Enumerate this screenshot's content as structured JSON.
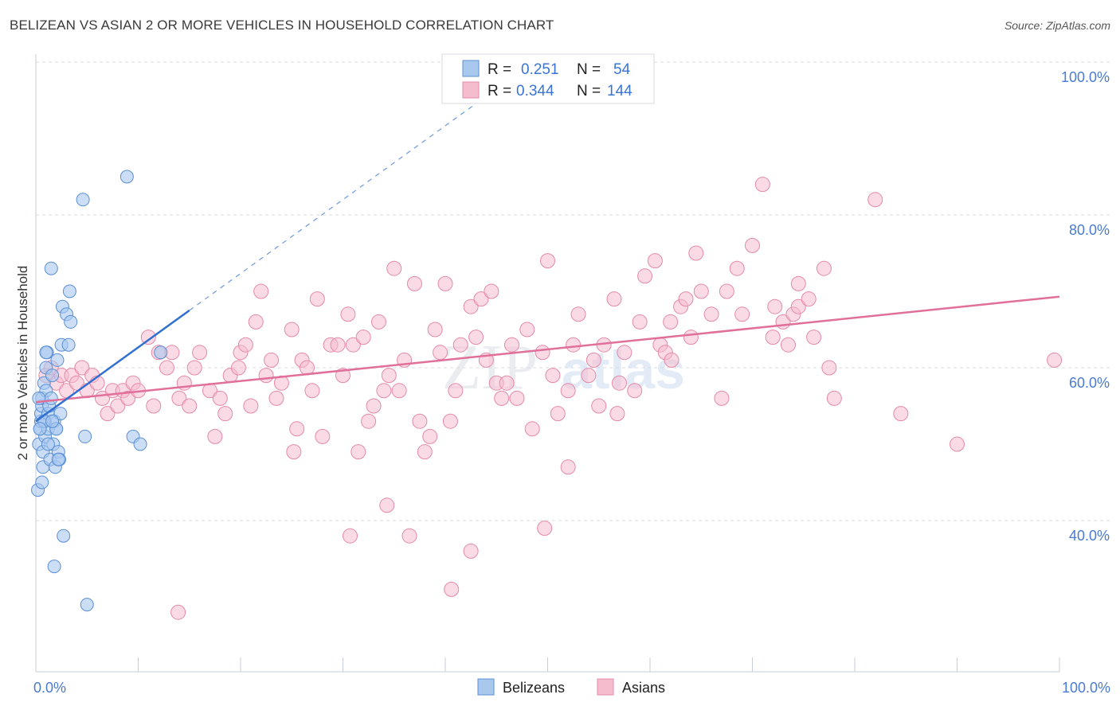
{
  "title": "BELIZEAN VS ASIAN 2 OR MORE VEHICLES IN HOUSEHOLD CORRELATION CHART",
  "source": "Source: ZipAtlas.com",
  "watermark": {
    "zip": "ZIP",
    "atlas": "atlas"
  },
  "colors": {
    "blue_fill": "#a9c8ee",
    "blue_stroke": "#5b8fd6",
    "blue_line": "#2f6fd0",
    "pink_fill": "#f5bccd",
    "pink_stroke": "#e58aa8",
    "pink_line": "#e0709a",
    "grid": "#d8dde6",
    "axis_label": "#4a7bd0"
  },
  "legend": {
    "rows": [
      {
        "r_label": "R =",
        "r_value": "0.251",
        "n_label": "N =",
        "n_value": "54"
      },
      {
        "r_label": "R =",
        "r_value": "0.344",
        "n_label": "N =",
        "n_value": "144"
      }
    ]
  },
  "bottom_legend": {
    "belizeans": "Belizeans",
    "asians": "Asians"
  },
  "chart_data": {
    "type": "scatter",
    "title": "BELIZEAN VS ASIAN 2 OR MORE VEHICLES IN HOUSEHOLD CORRELATION CHART",
    "xlabel": "",
    "ylabel": "2 or more Vehicles in Household",
    "xlim": [
      0,
      100
    ],
    "ylim": [
      20,
      103
    ],
    "x_tick_labels": [
      "0.0%",
      "100.0%"
    ],
    "y_ticks": [
      40,
      60,
      80,
      100
    ],
    "y_tick_labels": [
      "40.0%",
      "60.0%",
      "80.0%",
      "100.0%"
    ],
    "series": [
      {
        "name": "Belizeans",
        "r": 0.251,
        "n": 54,
        "trend": {
          "x0": 0,
          "y0": 53.0,
          "x1": 15,
          "y1": 67.5,
          "dash_to_x": 47
        },
        "points": [
          [
            0.2,
            44
          ],
          [
            0.3,
            50
          ],
          [
            0.4,
            52
          ],
          [
            0.5,
            53
          ],
          [
            0.5,
            54
          ],
          [
            0.6,
            55
          ],
          [
            0.6,
            56
          ],
          [
            0.7,
            47
          ],
          [
            0.7,
            49
          ],
          [
            0.8,
            58
          ],
          [
            0.9,
            51
          ],
          [
            0.9,
            53
          ],
          [
            1.0,
            57
          ],
          [
            1.0,
            60
          ],
          [
            1.1,
            62
          ],
          [
            1.2,
            54
          ],
          [
            1.2,
            52
          ],
          [
            1.3,
            55
          ],
          [
            1.4,
            48
          ],
          [
            1.5,
            56
          ],
          [
            1.6,
            59
          ],
          [
            1.7,
            50
          ],
          [
            1.8,
            53
          ],
          [
            1.9,
            47
          ],
          [
            2.0,
            52
          ],
          [
            2.1,
            61
          ],
          [
            2.2,
            49
          ],
          [
            2.3,
            48
          ],
          [
            2.4,
            54
          ],
          [
            2.5,
            63
          ],
          [
            2.6,
            68
          ],
          [
            0.3,
            56
          ],
          [
            0.6,
            45
          ],
          [
            1.0,
            62
          ],
          [
            1.5,
            73
          ],
          [
            0.8,
            53
          ],
          [
            1.2,
            50
          ],
          [
            1.8,
            34
          ],
          [
            2.0,
            52
          ],
          [
            2.2,
            48
          ],
          [
            3.0,
            67
          ],
          [
            3.2,
            63
          ],
          [
            3.3,
            70
          ],
          [
            3.4,
            66
          ],
          [
            2.7,
            38
          ],
          [
            4.6,
            82
          ],
          [
            4.8,
            51
          ],
          [
            5.0,
            29
          ],
          [
            8.9,
            85
          ],
          [
            9.5,
            51
          ],
          [
            10.2,
            50
          ],
          [
            12.2,
            62
          ],
          [
            0.4,
            52
          ],
          [
            1.6,
            53
          ]
        ]
      },
      {
        "name": "Asians",
        "r": 0.344,
        "n": 144,
        "trend": {
          "x0": 0,
          "y0": 55.5,
          "x1": 100,
          "y1": 69.3
        },
        "points": [
          [
            1.0,
            59
          ],
          [
            1.5,
            60
          ],
          [
            2.0,
            58
          ],
          [
            2.5,
            59
          ],
          [
            3.0,
            57
          ],
          [
            3.5,
            59
          ],
          [
            4.0,
            58
          ],
          [
            4.5,
            60
          ],
          [
            5.0,
            57
          ],
          [
            5.5,
            59
          ],
          [
            6.0,
            58
          ],
          [
            6.5,
            56
          ],
          [
            7.0,
            54
          ],
          [
            7.5,
            57
          ],
          [
            8.0,
            55
          ],
          [
            8.5,
            57
          ],
          [
            9.0,
            56
          ],
          [
            9.5,
            58
          ],
          [
            10.0,
            57
          ],
          [
            11.0,
            64
          ],
          [
            11.5,
            55
          ],
          [
            12.0,
            62
          ],
          [
            12.8,
            60
          ],
          [
            13.3,
            62
          ],
          [
            14.0,
            56
          ],
          [
            14.5,
            58
          ],
          [
            15.0,
            55
          ],
          [
            15.5,
            60
          ],
          [
            16.0,
            62
          ],
          [
            17.0,
            57
          ],
          [
            17.5,
            51
          ],
          [
            18.0,
            56
          ],
          [
            18.5,
            54
          ],
          [
            19.0,
            59
          ],
          [
            19.8,
            60
          ],
          [
            20.0,
            62
          ],
          [
            20.5,
            63
          ],
          [
            21.0,
            55
          ],
          [
            21.5,
            66
          ],
          [
            22.0,
            70
          ],
          [
            22.5,
            59
          ],
          [
            23.0,
            61
          ],
          [
            23.5,
            56
          ],
          [
            24.0,
            58
          ],
          [
            25.0,
            65
          ],
          [
            25.5,
            52
          ],
          [
            26.0,
            61
          ],
          [
            26.5,
            60
          ],
          [
            27.0,
            57
          ],
          [
            27.5,
            69
          ],
          [
            28.0,
            51
          ],
          [
            28.8,
            63
          ],
          [
            29.5,
            63
          ],
          [
            30.0,
            59
          ],
          [
            30.5,
            67
          ],
          [
            31.0,
            63
          ],
          [
            31.5,
            49
          ],
          [
            32.0,
            64
          ],
          [
            32.5,
            53
          ],
          [
            33.0,
            55
          ],
          [
            33.5,
            66
          ],
          [
            34.0,
            57
          ],
          [
            34.5,
            59
          ],
          [
            35.0,
            73
          ],
          [
            35.5,
            57
          ],
          [
            36.0,
            61
          ],
          [
            37.0,
            71
          ],
          [
            37.5,
            53
          ],
          [
            38.0,
            49
          ],
          [
            38.5,
            51
          ],
          [
            39.0,
            65
          ],
          [
            39.5,
            62
          ],
          [
            40.0,
            71
          ],
          [
            40.5,
            53
          ],
          [
            41.0,
            57
          ],
          [
            41.5,
            63
          ],
          [
            42.5,
            68
          ],
          [
            43.0,
            64
          ],
          [
            43.5,
            69
          ],
          [
            44.0,
            61
          ],
          [
            44.5,
            70
          ],
          [
            45.0,
            58
          ],
          [
            45.5,
            56
          ],
          [
            46.0,
            58
          ],
          [
            46.5,
            63
          ],
          [
            47.0,
            56
          ],
          [
            48.0,
            65
          ],
          [
            48.5,
            52
          ],
          [
            49.5,
            62
          ],
          [
            50.0,
            74
          ],
          [
            50.5,
            59
          ],
          [
            51.0,
            54
          ],
          [
            52.0,
            57
          ],
          [
            52.5,
            63
          ],
          [
            53.0,
            67
          ],
          [
            54.0,
            59
          ],
          [
            54.5,
            61
          ],
          [
            55.0,
            55
          ],
          [
            55.5,
            63
          ],
          [
            56.5,
            69
          ],
          [
            57.0,
            58
          ],
          [
            57.5,
            62
          ],
          [
            58.5,
            57
          ],
          [
            59.0,
            66
          ],
          [
            59.5,
            72
          ],
          [
            60.5,
            74
          ],
          [
            61.0,
            63
          ],
          [
            61.5,
            62
          ],
          [
            62.0,
            66
          ],
          [
            63.0,
            68
          ],
          [
            63.5,
            69
          ],
          [
            64.0,
            64
          ],
          [
            64.5,
            75
          ],
          [
            65.0,
            70
          ],
          [
            66.0,
            67
          ],
          [
            67.0,
            56
          ],
          [
            67.5,
            70
          ],
          [
            68.5,
            73
          ],
          [
            69.0,
            67
          ],
          [
            70.0,
            76
          ],
          [
            71.0,
            84
          ],
          [
            72.0,
            64
          ],
          [
            73.0,
            66
          ],
          [
            73.5,
            63
          ],
          [
            74.0,
            67
          ],
          [
            74.5,
            68
          ],
          [
            75.5,
            69
          ],
          [
            76.0,
            64
          ],
          [
            77.0,
            73
          ],
          [
            78.0,
            56
          ],
          [
            13.9,
            28
          ],
          [
            25.2,
            49
          ],
          [
            30.7,
            38
          ],
          [
            34.3,
            42
          ],
          [
            36.5,
            38
          ],
          [
            40.6,
            31
          ],
          [
            42.5,
            36
          ],
          [
            49.7,
            39
          ],
          [
            52.0,
            47
          ],
          [
            56.8,
            54
          ],
          [
            62.1,
            61
          ],
          [
            72.2,
            68
          ],
          [
            74.5,
            71
          ],
          [
            77.5,
            60
          ],
          [
            82.0,
            82
          ],
          [
            84.5,
            54
          ],
          [
            90.0,
            50
          ],
          [
            99.5,
            61
          ]
        ]
      }
    ]
  }
}
